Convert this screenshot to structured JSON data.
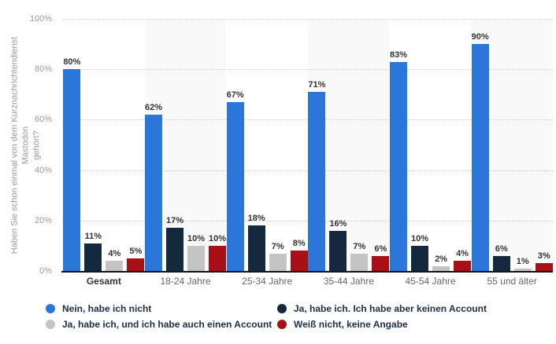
{
  "chart_data": {
    "type": "bar",
    "title": "",
    "ylabel": "Haben Sie schon einmal von dem Kurznachrichtendienst Mastodon gehört?",
    "ylabel_lines": [
      "Haben Sie schon einmal von dem Kurznachrichtendienst Mastodon",
      "gehört?"
    ],
    "categories": [
      "Gesamt",
      "18-24 Jahre",
      "25-34 Jahre",
      "35-44 Jahre",
      "45-54 Jahre",
      "55 und älter"
    ],
    "series": [
      {
        "name": "Nein, habe ich nicht",
        "color": "#2b76d9",
        "values": [
          80,
          62,
          67,
          71,
          83,
          90
        ]
      },
      {
        "name": "Ja, habe ich. Ich habe aber keinen Account",
        "color": "#15293e",
        "values": [
          11,
          17,
          18,
          16,
          10,
          6
        ]
      },
      {
        "name": "Ja, habe ich, und ich habe auch einen Account",
        "color": "#c4c4c4",
        "values": [
          4,
          10,
          7,
          7,
          2,
          1
        ]
      },
      {
        "name": "Weiß nicht, keine Angabe",
        "color": "#a91016",
        "values": [
          5,
          10,
          8,
          6,
          4,
          3
        ]
      }
    ],
    "value_suffix": "%",
    "y_ticks": [
      "100%",
      "80%",
      "60%",
      "40%",
      "20%",
      "0%"
    ],
    "ylim": [
      0,
      100
    ],
    "grid": "horizontal-dotted",
    "legend_position": "bottom",
    "band_color": "#f9f9f9",
    "emphasized_category": "Gesamt"
  }
}
